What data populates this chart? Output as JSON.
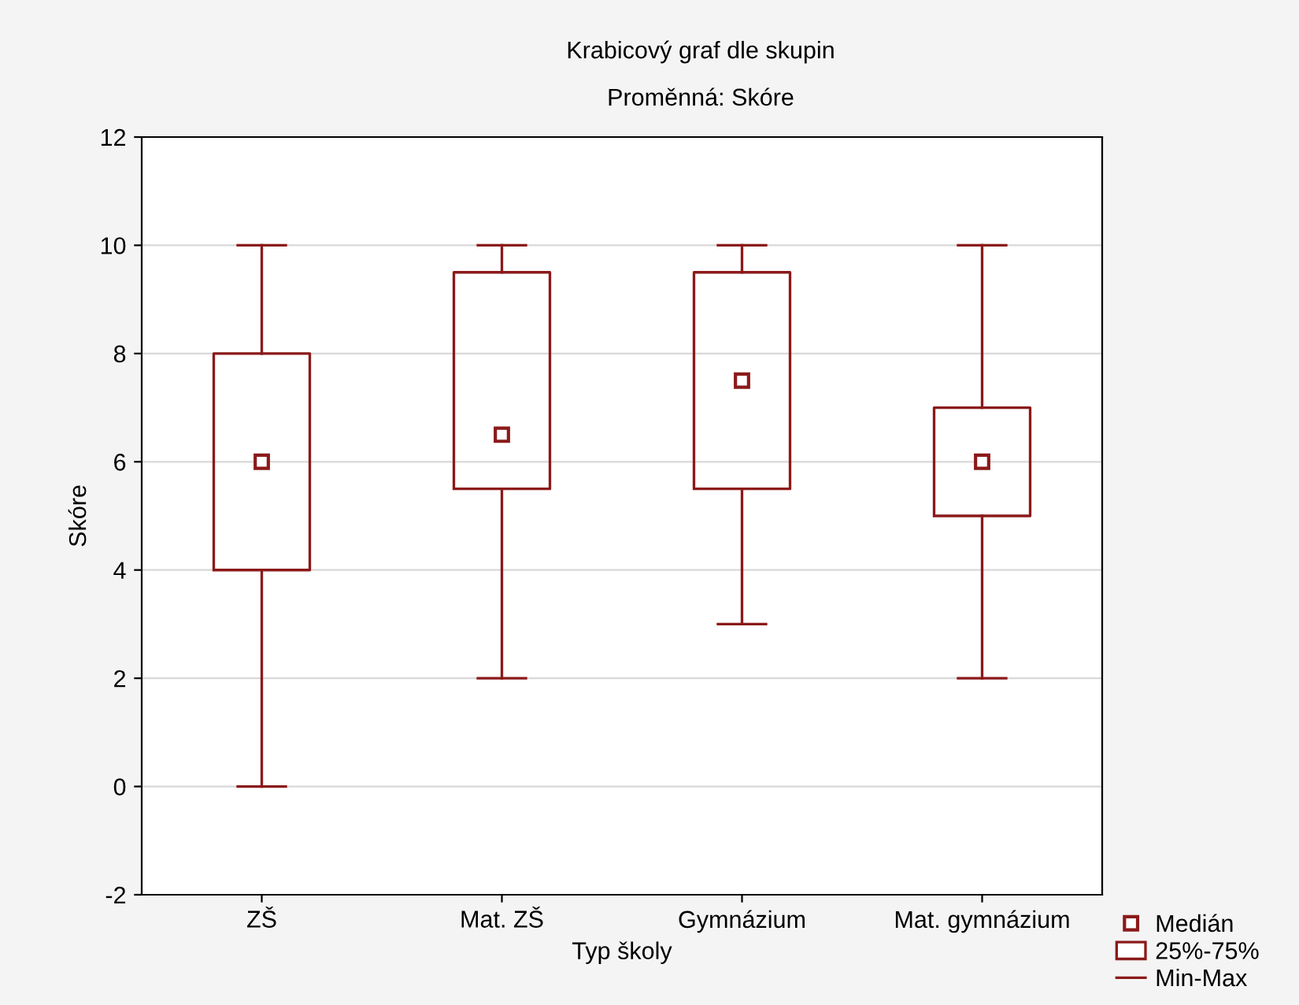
{
  "chart_data": {
    "type": "box",
    "title": "Krabicový graf dle skupin",
    "subtitle": "Proměnná: Skóre",
    "xlabel": "Typ školy",
    "ylabel": "Skóre",
    "categories": [
      "ZŠ",
      "Mat. ZŠ",
      "Gymnázium",
      "Mat. gymnázium"
    ],
    "boxes": [
      {
        "low": 0,
        "q1": 4,
        "median": 6,
        "q3": 8,
        "high": 10
      },
      {
        "low": 2,
        "q1": 5.5,
        "median": 6.5,
        "q3": 9.5,
        "high": 10
      },
      {
        "low": 3,
        "q1": 5.5,
        "median": 7.5,
        "q3": 9.5,
        "high": 10
      },
      {
        "low": 2,
        "q1": 5,
        "median": 6,
        "q3": 7,
        "high": 10
      }
    ],
    "color": "#8b1a1a",
    "ylim": [
      -2,
      12
    ],
    "yticks": [
      {
        "value": -2,
        "label": "-2"
      },
      0,
      2,
      4,
      6,
      8,
      10,
      12
    ],
    "grid": "y",
    "marker": "square",
    "annotations": [
      "Medián",
      "25%-75%",
      "Min-Max"
    ]
  }
}
